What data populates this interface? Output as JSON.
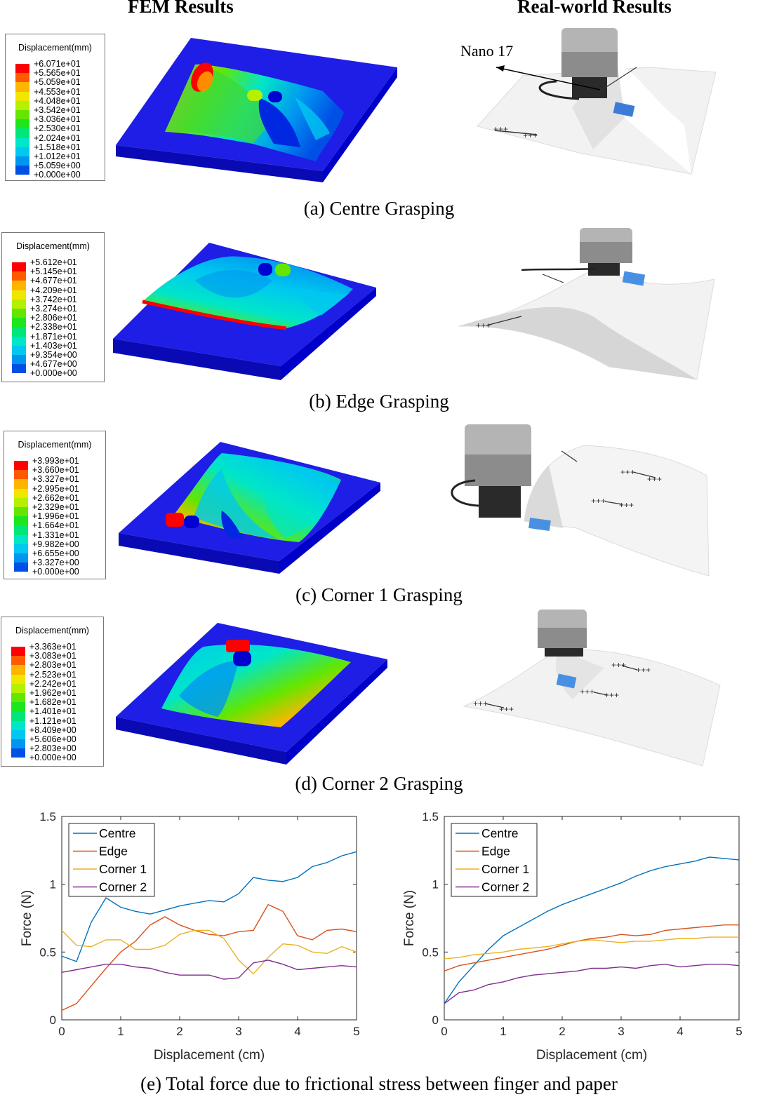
{
  "headers": {
    "fem": "FEM Results",
    "real": "Real-world Results"
  },
  "annotation": "Nano 17",
  "captions": {
    "a": "(a) Centre Grasping",
    "b": "(b) Edge Grasping",
    "c": "(c) Corner 1 Grasping",
    "d": "(d) Corner 2 Grasping",
    "e": "(e) Total force due to frictional stress between finger and paper"
  },
  "legend_colors": [
    "#ff0000",
    "#ff5a00",
    "#ffb400",
    "#f0e600",
    "#b4f000",
    "#64e600",
    "#1ee61e",
    "#00e678",
    "#00e6c8",
    "#00c8f0",
    "#0096f0",
    "#0050e6",
    "#0000ff"
  ],
  "legends": [
    {
      "title": "Displacement(mm)",
      "values": [
        "+6.071e+01",
        "+5.565e+01",
        "+5.059e+01",
        "+4.553e+01",
        "+4.048e+01",
        "+3.542e+01",
        "+3.036e+01",
        "+2.530e+01",
        "+2.024e+01",
        "+1.518e+01",
        "+1.012e+01",
        "+5.059e+00",
        "+0.000e+00"
      ]
    },
    {
      "title": "Displacement(mm)",
      "values": [
        "+5.612e+01",
        "+5.145e+01",
        "+4.677e+01",
        "+4.209e+01",
        "+3.742e+01",
        "+3.274e+01",
        "+2.806e+01",
        "+2.338e+01",
        "+1.871e+01",
        "+1.403e+01",
        "+9.354e+00",
        "+4.677e+00",
        "+0.000e+00"
      ]
    },
    {
      "title": "Displacement(mm)",
      "values": [
        "+3.993e+01",
        "+3.660e+01",
        "+3.327e+01",
        "+2.995e+01",
        "+2.662e+01",
        "+2.329e+01",
        "+1.996e+01",
        "+1.664e+01",
        "+1.331e+01",
        "+9.982e+00",
        "+6.655e+00",
        "+3.327e+00",
        "+0.000e+00"
      ]
    },
    {
      "title": "Displacement(mm)",
      "values": [
        "+3.363e+01",
        "+3.083e+01",
        "+2.803e+01",
        "+2.523e+01",
        "+2.242e+01",
        "+1.962e+01",
        "+1.682e+01",
        "+1.401e+01",
        "+1.121e+01",
        "+8.409e+00",
        "+5.606e+00",
        "+2.803e+00",
        "+0.000e+00"
      ]
    }
  ],
  "chart_data": [
    {
      "type": "line",
      "xlabel": "Displacement (cm)",
      "ylabel": "Force (N)",
      "xlim": [
        0,
        5
      ],
      "ylim": [
        0,
        1.5
      ],
      "xticks": [
        "0",
        "1",
        "2",
        "3",
        "4",
        "5"
      ],
      "yticks": [
        "0",
        "0.5",
        "1",
        "1.5"
      ],
      "legend_position": "top-left",
      "x": [
        0,
        0.25,
        0.5,
        0.75,
        1,
        1.25,
        1.5,
        1.75,
        2,
        2.25,
        2.5,
        2.75,
        3,
        3.25,
        3.5,
        3.75,
        4,
        4.25,
        4.5,
        4.75,
        5
      ],
      "series": [
        {
          "name": "Centre",
          "color": "#0072bd",
          "values": [
            0.47,
            0.43,
            0.72,
            0.9,
            0.83,
            0.8,
            0.78,
            0.81,
            0.84,
            0.86,
            0.88,
            0.87,
            0.93,
            1.05,
            1.03,
            1.02,
            1.05,
            1.13,
            1.16,
            1.21,
            1.24
          ]
        },
        {
          "name": "Edge",
          "color": "#d95319",
          "values": [
            0.07,
            0.12,
            0.25,
            0.38,
            0.5,
            0.58,
            0.7,
            0.76,
            0.7,
            0.66,
            0.63,
            0.62,
            0.65,
            0.66,
            0.85,
            0.8,
            0.62,
            0.59,
            0.66,
            0.67,
            0.65
          ]
        },
        {
          "name": "Corner 1",
          "color": "#edb120",
          "values": [
            0.66,
            0.55,
            0.54,
            0.59,
            0.59,
            0.52,
            0.52,
            0.55,
            0.63,
            0.66,
            0.66,
            0.6,
            0.44,
            0.34,
            0.46,
            0.56,
            0.55,
            0.5,
            0.49,
            0.54,
            0.5
          ]
        },
        {
          "name": "Corner 2",
          "color": "#7e2f8e",
          "values": [
            0.35,
            0.37,
            0.39,
            0.41,
            0.41,
            0.39,
            0.38,
            0.35,
            0.33,
            0.33,
            0.33,
            0.3,
            0.31,
            0.42,
            0.44,
            0.41,
            0.37,
            0.38,
            0.39,
            0.4,
            0.39
          ]
        }
      ]
    },
    {
      "type": "line",
      "xlabel": "Displacement (cm)",
      "ylabel": "Force (N)",
      "xlim": [
        0,
        5
      ],
      "ylim": [
        0,
        1.5
      ],
      "xticks": [
        "0",
        "1",
        "2",
        "3",
        "4",
        "5"
      ],
      "yticks": [
        "0",
        "0.5",
        "1",
        "1.5"
      ],
      "legend_position": "top-left",
      "x": [
        0,
        0.25,
        0.5,
        0.75,
        1,
        1.25,
        1.5,
        1.75,
        2,
        2.25,
        2.5,
        2.75,
        3,
        3.25,
        3.5,
        3.75,
        4,
        4.25,
        4.5,
        4.75,
        5
      ],
      "series": [
        {
          "name": "Centre",
          "color": "#0072bd",
          "values": [
            0.12,
            0.28,
            0.4,
            0.52,
            0.62,
            0.68,
            0.74,
            0.8,
            0.85,
            0.89,
            0.93,
            0.97,
            1.01,
            1.06,
            1.1,
            1.13,
            1.15,
            1.17,
            1.2,
            1.19,
            1.18
          ]
        },
        {
          "name": "Edge",
          "color": "#d95319",
          "values": [
            0.36,
            0.4,
            0.42,
            0.44,
            0.46,
            0.48,
            0.5,
            0.52,
            0.55,
            0.58,
            0.6,
            0.61,
            0.63,
            0.62,
            0.63,
            0.66,
            0.67,
            0.68,
            0.69,
            0.7,
            0.7
          ]
        },
        {
          "name": "Corner 1",
          "color": "#edb120",
          "values": [
            0.45,
            0.46,
            0.48,
            0.49,
            0.5,
            0.52,
            0.53,
            0.54,
            0.56,
            0.58,
            0.59,
            0.58,
            0.57,
            0.58,
            0.58,
            0.59,
            0.6,
            0.6,
            0.61,
            0.61,
            0.61
          ]
        },
        {
          "name": "Corner 2",
          "color": "#7e2f8e",
          "values": [
            0.12,
            0.2,
            0.22,
            0.26,
            0.28,
            0.31,
            0.33,
            0.34,
            0.35,
            0.36,
            0.38,
            0.38,
            0.39,
            0.38,
            0.4,
            0.41,
            0.39,
            0.4,
            0.41,
            0.41,
            0.4
          ]
        }
      ]
    }
  ]
}
